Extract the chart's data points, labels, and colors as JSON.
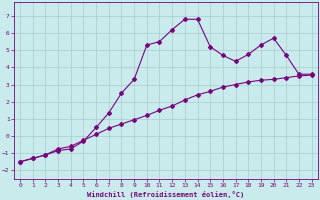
{
  "xlabel": "Windchill (Refroidissement éolien,°C)",
  "background_color": "#c8ecec",
  "line_color": "#800080",
  "grid_color": "#aacccc",
  "xlim": [
    -0.5,
    23.5
  ],
  "ylim": [
    -2.5,
    7.8
  ],
  "yticks": [
    -2,
    -1,
    0,
    1,
    2,
    3,
    4,
    5,
    6,
    7
  ],
  "xticks": [
    0,
    1,
    2,
    3,
    4,
    5,
    6,
    7,
    8,
    9,
    10,
    11,
    12,
    13,
    14,
    15,
    16,
    17,
    18,
    19,
    20,
    21,
    22,
    23
  ],
  "line1_x": [
    0,
    1,
    2,
    3,
    4,
    5,
    6,
    7,
    8,
    9,
    10,
    11,
    12,
    13,
    14,
    15,
    16,
    17,
    18,
    19,
    20,
    21,
    22,
    23
  ],
  "line1_y": [
    -1.5,
    -1.3,
    -1.1,
    -0.75,
    -0.6,
    -0.25,
    0.1,
    0.45,
    0.7,
    0.95,
    1.2,
    1.5,
    1.75,
    2.1,
    2.4,
    2.6,
    2.85,
    3.0,
    3.15,
    3.25,
    3.3,
    3.4,
    3.5,
    3.55
  ],
  "line2_x": [
    0,
    1,
    2,
    3,
    4,
    5,
    6,
    7,
    8,
    9,
    10,
    11,
    12,
    13,
    14,
    15,
    16,
    17,
    18,
    19,
    20,
    21,
    22,
    23
  ],
  "line2_y": [
    -1.5,
    -1.3,
    -1.1,
    -0.85,
    -0.75,
    -0.3,
    0.5,
    1.35,
    2.5,
    3.3,
    5.3,
    5.5,
    6.2,
    6.8,
    6.8,
    5.2,
    4.7,
    4.35,
    4.75,
    5.3,
    5.7,
    4.7,
    3.6,
    3.6
  ]
}
